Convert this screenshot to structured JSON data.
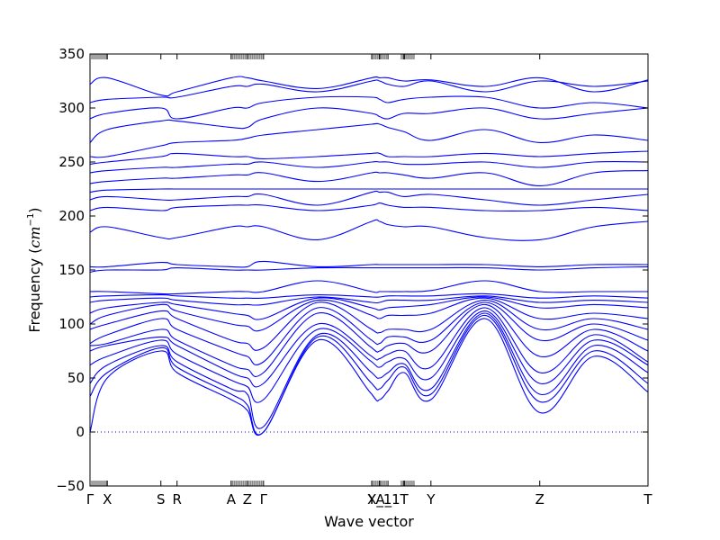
{
  "chart_data": {
    "type": "line",
    "title": "",
    "xlabel": "Wave vector",
    "ylabel_main": "Frequency (",
    "ylabel_unit": "cm",
    "ylabel_exp": "−1",
    "ylabel_close": ")",
    "ylim": [
      -50,
      350
    ],
    "xlim": [
      0,
      1
    ],
    "yticks": [
      -50,
      0,
      50,
      100,
      150,
      200,
      250,
      300,
      350
    ],
    "grid": false,
    "legend": "none",
    "zero_line": {
      "y": 0,
      "style": "dotted",
      "color": "#0000ff"
    },
    "colors": {
      "bands": "#0000ff",
      "frame": "#000000",
      "ticks": "#444444"
    },
    "high_symmetry_points": [
      {
        "label": "Γ",
        "x": 0.0
      },
      {
        "label": "X",
        "x": 0.031
      },
      {
        "label": "S",
        "x": 0.127
      },
      {
        "label": "R",
        "x": 0.156
      },
      {
        "label": "A",
        "x": 0.253
      },
      {
        "label": "Z",
        "x": 0.282
      },
      {
        "label": "Γ",
        "x": 0.311
      },
      {
        "label": "Y",
        "x": 0.505
      },
      {
        "label": "X_1",
        "x": 0.519
      },
      {
        "label": "A_1",
        "x": 0.534
      },
      {
        "label": "T",
        "x": 0.563
      },
      {
        "label": "Y",
        "x": 0.611
      },
      {
        "label": "Z",
        "x": 0.806
      },
      {
        "label": "T",
        "x": 1.0
      }
    ],
    "minor_tick_groups": [
      {
        "from": 0.0,
        "to": 0.031
      },
      {
        "from": 0.253,
        "to": 0.311
      },
      {
        "from": 0.505,
        "to": 0.534
      },
      {
        "from": 0.558,
        "to": 0.582
      }
    ],
    "x": [
      0.0,
      0.031,
      0.127,
      0.156,
      0.253,
      0.282,
      0.311,
      0.408,
      0.505,
      0.519,
      0.534,
      0.563,
      0.611,
      0.708,
      0.806,
      0.903,
      1.0
    ],
    "series": [
      {
        "values": [
          0,
          50,
          75,
          55,
          30,
          20,
          0,
          85,
          35,
          30,
          38,
          55,
          30,
          105,
          18,
          70,
          37
        ]
      },
      {
        "values": [
          33,
          55,
          78,
          60,
          35,
          25,
          0,
          88,
          45,
          40,
          48,
          60,
          35,
          108,
          28,
          75,
          45
        ]
      },
      {
        "values": [
          45,
          62,
          80,
          65,
          40,
          35,
          5,
          90,
          55,
          50,
          55,
          63,
          40,
          110,
          35,
          80,
          55
        ]
      },
      {
        "values": [
          62,
          70,
          85,
          72,
          48,
          42,
          30,
          95,
          65,
          60,
          65,
          68,
          50,
          112,
          45,
          85,
          62
        ]
      },
      {
        "values": [
          75,
          80,
          88,
          80,
          55,
          50,
          45,
          100,
          70,
          68,
          72,
          75,
          60,
          115,
          55,
          90,
          65
        ]
      },
      {
        "values": [
          80,
          82,
          95,
          85,
          62,
          58,
          55,
          110,
          78,
          75,
          80,
          82,
          75,
          118,
          70,
          95,
          75
        ]
      },
      {
        "values": [
          82,
          90,
          105,
          95,
          75,
          70,
          65,
          115,
          85,
          82,
          88,
          88,
          85,
          120,
          85,
          100,
          85
        ]
      },
      {
        "values": [
          95,
          100,
          112,
          105,
          85,
          82,
          78,
          120,
          95,
          92,
          95,
          95,
          95,
          122,
          95,
          105,
          95
        ]
      },
      {
        "values": [
          100,
          108,
          118,
          112,
          100,
          98,
          95,
          122,
          108,
          105,
          108,
          108,
          110,
          124,
          105,
          110,
          105
        ]
      },
      {
        "values": [
          110,
          115,
          120,
          118,
          110,
          108,
          105,
          124,
          115,
          113,
          115,
          116,
          118,
          125,
          115,
          118,
          115
        ]
      },
      {
        "values": [
          120,
          122,
          124,
          122,
          118,
          118,
          118,
          125,
          120,
          120,
          122,
          122,
          122,
          126,
          120,
          122,
          120
        ]
      },
      {
        "values": [
          125,
          126,
          127,
          126,
          124,
          124,
          124,
          127,
          125,
          125,
          126,
          126,
          126,
          128,
          124,
          126,
          124
        ]
      },
      {
        "values": [
          130,
          130,
          128,
          128,
          130,
          130,
          130,
          140,
          130,
          130,
          130,
          130,
          131,
          140,
          130,
          130,
          130
        ]
      },
      {
        "values": [
          153,
          153,
          157,
          155,
          153,
          153,
          158,
          153,
          155,
          155,
          155,
          155,
          155,
          155,
          153,
          155,
          155
        ]
      },
      {
        "values": [
          148,
          150,
          150,
          152,
          150,
          150,
          150,
          152,
          152,
          152,
          152,
          152,
          152,
          152,
          150,
          152,
          153
        ]
      },
      {
        "values": [
          185,
          190,
          180,
          180,
          190,
          190,
          190,
          178,
          195,
          195,
          192,
          190,
          190,
          180,
          178,
          190,
          195
        ]
      },
      {
        "values": [
          205,
          208,
          205,
          208,
          210,
          210,
          210,
          205,
          210,
          212,
          210,
          208,
          208,
          205,
          205,
          208,
          205
        ]
      },
      {
        "values": [
          215,
          218,
          215,
          215,
          218,
          218,
          220,
          210,
          222,
          222,
          222,
          218,
          220,
          215,
          210,
          215,
          220
        ]
      },
      {
        "values": [
          222,
          224,
          225,
          225,
          225,
          225,
          225,
          225,
          225,
          225,
          225,
          225,
          225,
          225,
          225,
          225,
          225
        ]
      },
      {
        "values": [
          230,
          232,
          235,
          235,
          238,
          238,
          240,
          232,
          240,
          240,
          240,
          238,
          235,
          240,
          228,
          240,
          242
        ]
      },
      {
        "values": [
          240,
          242,
          245,
          245,
          248,
          248,
          250,
          245,
          250,
          250,
          250,
          248,
          248,
          250,
          245,
          250,
          250
        ]
      },
      {
        "values": [
          248,
          250,
          255,
          258,
          255,
          255,
          253,
          255,
          258,
          258,
          255,
          255,
          255,
          258,
          255,
          258,
          260
        ]
      },
      {
        "values": [
          255,
          255,
          265,
          268,
          270,
          272,
          275,
          280,
          285,
          285,
          282,
          278,
          270,
          280,
          268,
          275,
          270
        ]
      },
      {
        "values": [
          268,
          280,
          288,
          288,
          282,
          282,
          290,
          300,
          295,
          292,
          290,
          295,
          295,
          300,
          290,
          295,
          300
        ]
      },
      {
        "values": [
          290,
          295,
          300,
          290,
          300,
          300,
          305,
          310,
          310,
          308,
          305,
          308,
          310,
          310,
          300,
          305,
          300
        ]
      },
      {
        "values": [
          305,
          308,
          310,
          310,
          320,
          320,
          322,
          315,
          325,
          325,
          322,
          320,
          325,
          315,
          325,
          320,
          325
        ]
      },
      {
        "values": [
          322,
          328,
          312,
          315,
          328,
          328,
          325,
          318,
          328,
          328,
          328,
          325,
          326,
          320,
          328,
          315,
          326
        ]
      }
    ]
  }
}
